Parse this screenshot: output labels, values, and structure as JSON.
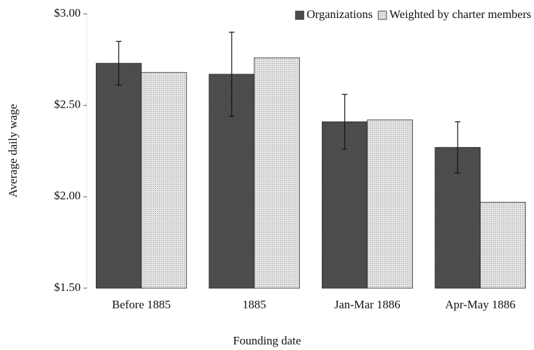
{
  "chart_data": {
    "type": "bar",
    "x_label": "Founding date",
    "y_label": "Average daily wage",
    "categories": [
      "Before 1885",
      "1885",
      "Jan-Mar 1886",
      "Apr-May 1886"
    ],
    "series": [
      {
        "name": "Organizations",
        "color": "#555555",
        "values": [
          2.73,
          2.67,
          2.41,
          2.27
        ],
        "errors": [
          0.12,
          0.23,
          0.15,
          0.14
        ]
      },
      {
        "name": "Weighted by charter members",
        "color": "#dddddd",
        "values": [
          2.68,
          2.76,
          2.42,
          1.97
        ]
      }
    ],
    "ylim": [
      1.5,
      3.0
    ],
    "yticks": [
      {
        "value": 1.5,
        "label": "$1.50"
      },
      {
        "value": 2.0,
        "label": "$2.00"
      },
      {
        "value": 2.5,
        "label": "$2.50"
      },
      {
        "value": 3.0,
        "label": "$3.00"
      }
    ],
    "legend": "top-right"
  }
}
